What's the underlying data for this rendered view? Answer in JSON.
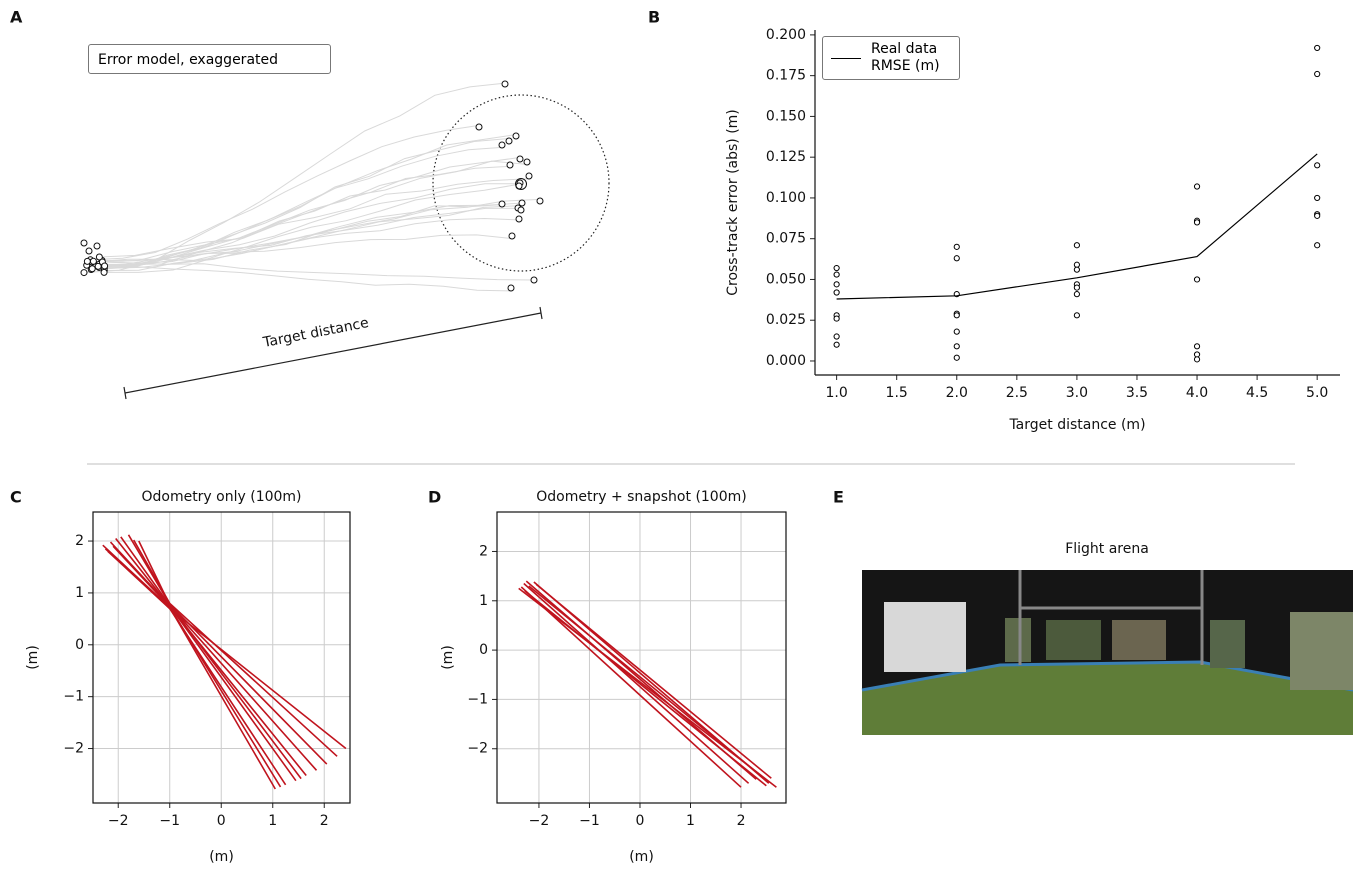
{
  "panel_labels": [
    "A",
    "B",
    "C",
    "D",
    "E"
  ],
  "diagram": {
    "legend": "Error model, exaggerated",
    "scale_label": "Target distance"
  },
  "image": {
    "title": "Flight arena"
  },
  "chart_data": [
    {
      "type": "line",
      "xlabel": "Target distance (m)",
      "ylabel": "Cross-track error (abs) (m)",
      "xlim": [
        0.82,
        5.19
      ],
      "ylim": [
        -0.0086,
        0.203
      ],
      "spines": "left-bottom",
      "grid": false,
      "legend": "upper left",
      "xticks": [
        {
          "value": 1,
          "label": "1.0"
        },
        1.5,
        {
          "value": 2,
          "label": "2.0"
        },
        2.5,
        {
          "value": 3,
          "label": "3.0"
        },
        3.5,
        {
          "value": 4,
          "label": "4.0"
        },
        4.5,
        {
          "value": 5,
          "label": "5.0"
        }
      ],
      "yticks": [
        {
          "value": 0,
          "label": "0.000"
        },
        0.025,
        {
          "value": 0.05,
          "label": "0.050"
        },
        0.075,
        {
          "value": 0.1,
          "label": "0.100"
        },
        0.125,
        {
          "value": 0.15,
          "label": "0.150"
        },
        0.175,
        {
          "value": 0.2,
          "label": "0.200"
        }
      ],
      "series": [
        {
          "color": "#000000",
          "mode": "markers",
          "x": [
            1,
            1,
            1,
            1,
            1,
            1,
            1,
            1,
            2,
            2,
            2,
            2,
            2,
            2,
            2,
            2,
            3,
            3,
            3,
            3,
            3,
            3,
            3,
            4,
            4,
            4,
            4,
            4,
            4,
            4,
            5,
            5,
            5,
            5,
            5,
            5,
            5
          ],
          "values": [
            0.057,
            0.053,
            0.047,
            0.042,
            0.028,
            0.026,
            0.015,
            0.01,
            0.07,
            0.063,
            0.041,
            0.029,
            0.028,
            0.018,
            0.009,
            0.002,
            0.071,
            0.059,
            0.056,
            0.047,
            0.045,
            0.041,
            0.028,
            0.107,
            0.086,
            0.085,
            0.05,
            0.009,
            0.004,
            0.001,
            0.192,
            0.176,
            0.12,
            0.1,
            0.09,
            0.089,
            0.071
          ]
        },
        {
          "name": "Real data RMSE (m)",
          "color": "#000000",
          "mode": "lines",
          "x": [
            1,
            2,
            3,
            4,
            5
          ],
          "values": [
            0.038,
            0.04,
            0.051,
            0.064,
            0.127
          ]
        }
      ]
    },
    {
      "type": "line",
      "title": "Odometry only (100m)",
      "xlabel": "(m)",
      "ylabel": "(m)",
      "xlim": [
        -2.49,
        2.5
      ],
      "ylim": [
        -3.05,
        2.56
      ],
      "spines": "box",
      "grid": true,
      "xticks": [
        {
          "value": -2,
          "label": "−2"
        },
        {
          "value": -1,
          "label": "−1"
        },
        0,
        1,
        2
      ],
      "yticks": [
        {
          "value": -2,
          "label": "−2"
        },
        {
          "value": -1,
          "label": "−1"
        },
        0,
        1,
        2
      ],
      "series": [
        {
          "color": "#c0141e",
          "mode": "lines",
          "x": [
            -2.3,
            -1.0,
            1.05
          ],
          "values": [
            1.92,
            0.72,
            -2.78
          ]
        },
        {
          "color": "#c0141e",
          "mode": "lines",
          "x": [
            -2.25,
            -1.0,
            1.25
          ],
          "values": [
            1.85,
            0.7,
            -2.7
          ]
        },
        {
          "color": "#c0141e",
          "mode": "lines",
          "x": [
            -2.15,
            -1.0,
            1.45
          ],
          "values": [
            1.98,
            0.75,
            -2.62
          ]
        },
        {
          "color": "#c0141e",
          "mode": "lines",
          "x": [
            -2.05,
            -1.0,
            1.65
          ],
          "values": [
            2.05,
            0.74,
            -2.52
          ]
        },
        {
          "color": "#c0141e",
          "mode": "lines",
          "x": [
            -1.95,
            -1.0,
            1.85
          ],
          "values": [
            2.08,
            0.76,
            -2.42
          ]
        },
        {
          "color": "#c0141e",
          "mode": "lines",
          "x": [
            -1.8,
            -1.0,
            2.05
          ],
          "values": [
            2.12,
            0.78,
            -2.3
          ]
        },
        {
          "color": "#c0141e",
          "mode": "lines",
          "x": [
            -1.7,
            -1.0,
            2.25
          ],
          "values": [
            2.02,
            0.8,
            -2.15
          ]
        },
        {
          "color": "#c0141e",
          "mode": "lines",
          "x": [
            -2.2,
            -1.0,
            2.42
          ],
          "values": [
            1.8,
            0.7,
            -2.0
          ]
        },
        {
          "color": "#c0141e",
          "mode": "lines",
          "x": [
            -1.6,
            -1.0,
            1.55
          ],
          "values": [
            2.0,
            0.77,
            -2.58
          ]
        },
        {
          "color": "#c0141e",
          "mode": "lines",
          "x": [
            -2.1,
            -1.0,
            1.15
          ],
          "values": [
            1.9,
            0.73,
            -2.74
          ]
        }
      ]
    },
    {
      "type": "line",
      "title": "Odometry + snapshot (100m)",
      "xlabel": "(m)",
      "ylabel": "(m)",
      "xlim": [
        -2.83,
        2.89
      ],
      "ylim": [
        -3.1,
        2.8
      ],
      "spines": "box",
      "grid": true,
      "xticks": [
        {
          "value": -2,
          "label": "−2"
        },
        {
          "value": -1,
          "label": "−1"
        },
        0,
        1,
        2
      ],
      "yticks": [
        {
          "value": -2,
          "label": "−2"
        },
        {
          "value": -1,
          "label": "−1"
        },
        0,
        1,
        2
      ],
      "series": [
        {
          "color": "#c0141e",
          "mode": "lines",
          "x": [
            -2.35,
            2.0
          ],
          "values": [
            1.28,
            -2.78
          ]
        },
        {
          "color": "#c0141e",
          "mode": "lines",
          "x": [
            -2.3,
            2.15
          ],
          "values": [
            1.35,
            -2.7
          ]
        },
        {
          "color": "#c0141e",
          "mode": "lines",
          "x": [
            -2.25,
            2.3
          ],
          "values": [
            1.4,
            -2.62
          ]
        },
        {
          "color": "#c0141e",
          "mode": "lines",
          "x": [
            -2.2,
            2.4
          ],
          "values": [
            1.3,
            -2.55
          ]
        },
        {
          "color": "#c0141e",
          "mode": "lines",
          "x": [
            -2.1,
            2.55
          ],
          "values": [
            1.38,
            -2.7
          ]
        },
        {
          "color": "#c0141e",
          "mode": "lines",
          "x": [
            -2.4,
            2.7
          ],
          "values": [
            1.25,
            -2.78
          ]
        },
        {
          "color": "#c0141e",
          "mode": "lines",
          "x": [
            -2.28,
            2.5
          ],
          "values": [
            1.2,
            -2.75
          ]
        },
        {
          "color": "#c0141e",
          "mode": "lines",
          "x": [
            -2.05,
            2.6
          ],
          "values": [
            1.33,
            -2.6
          ]
        }
      ]
    }
  ]
}
